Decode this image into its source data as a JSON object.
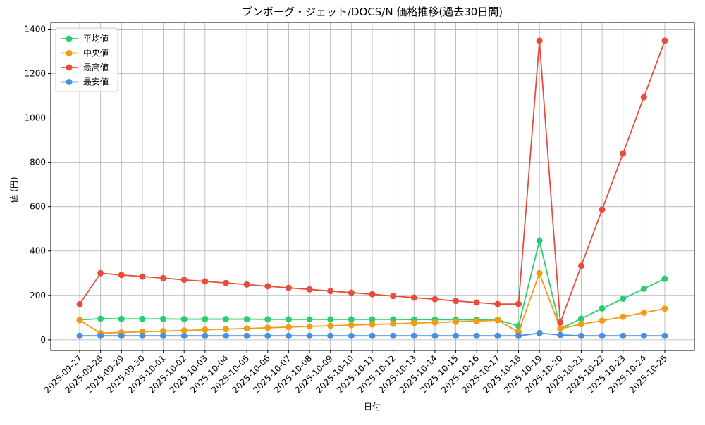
{
  "chart_data": {
    "type": "line",
    "title": "ブンボーグ・ジェット/DOCS/N 価格推移(過去30日間)",
    "x_label": "日付",
    "y_label": "値 (円)",
    "categories": [
      "2025-09-27",
      "2025-09-28",
      "2025-09-29",
      "2025-09-30",
      "2025-10-01",
      "2025-10-02",
      "2025-10-03",
      "2025-10-04",
      "2025-10-05",
      "2025-10-06",
      "2025-10-07",
      "2025-10-08",
      "2025-10-09",
      "2025-10-10",
      "2025-10-11",
      "2025-10-12",
      "2025-10-13",
      "2025-10-14",
      "2025-10-15",
      "2025-10-16",
      "2025-10-17",
      "2025-10-18",
      "2025-10-19",
      "2025-10-20",
      "2025-10-21",
      "2025-10-22",
      "2025-10-23",
      "2025-10-24",
      "2025-10-25"
    ],
    "series": [
      {
        "name": "平均値",
        "color": "#2ecc71",
        "values": [
          90,
          95,
          94,
          94,
          94,
          93,
          93,
          93,
          93,
          92,
          92,
          92,
          92,
          92,
          92,
          92,
          91,
          91,
          90,
          90,
          90,
          62,
          447,
          50,
          95,
          141,
          185,
          230,
          275
        ]
      },
      {
        "name": "中央値",
        "color": "#f39c12",
        "values": [
          88,
          30,
          33,
          36,
          39,
          42,
          45,
          48,
          51,
          54,
          57,
          60,
          63,
          66,
          69,
          72,
          75,
          78,
          81,
          84,
          88,
          35,
          300,
          50,
          70,
          86,
          104,
          122,
          140
        ]
      },
      {
        "name": "最高値",
        "color": "#e74c3c",
        "values": [
          160,
          300,
          292,
          285,
          278,
          270,
          263,
          256,
          249,
          241,
          234,
          227,
          219,
          212,
          205,
          197,
          190,
          183,
          175,
          168,
          161,
          161,
          1348,
          78,
          333,
          587,
          840,
          1094,
          1348
        ]
      },
      {
        "name": "最安値",
        "color": "#4a90e2",
        "values": [
          18,
          18,
          18,
          18,
          18,
          18,
          18,
          18,
          18,
          18,
          18,
          18,
          18,
          18,
          18,
          18,
          18,
          18,
          18,
          18,
          18,
          18,
          30,
          22,
          18,
          18,
          18,
          18,
          18
        ]
      }
    ],
    "ylim": [
      -48,
      1430
    ],
    "yticks": [
      0,
      200,
      400,
      600,
      800,
      1000,
      1200,
      1400
    ],
    "grid": true,
    "legend": "upper-left"
  }
}
